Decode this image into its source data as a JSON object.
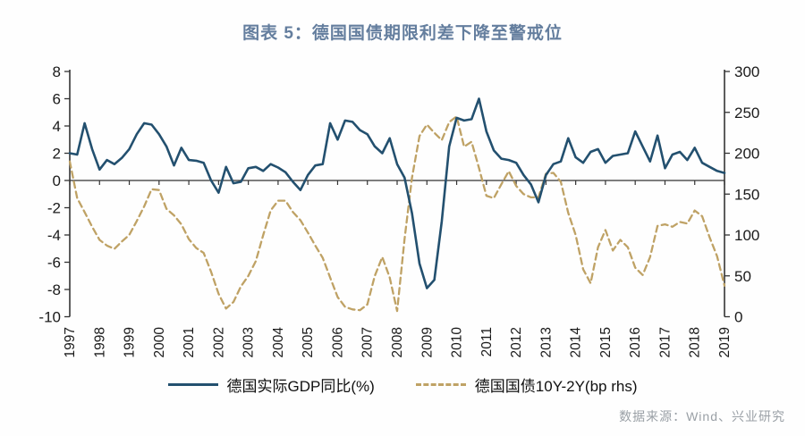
{
  "title": "图表 5：德国国债期限利差下降至警戒位",
  "source": "数据来源：Wind、兴业研究",
  "legend": [
    {
      "label": "德国实际GDP同比(%)",
      "line_style": "solid",
      "color": "#23506f"
    },
    {
      "label": "德国国债10Y-2Y(bp rhs)",
      "line_style": "dashed",
      "color": "#bfa265"
    }
  ],
  "colors": {
    "gdp_line": "#23506f",
    "spread_line": "#bfa265",
    "axis": "#333333",
    "zero_line": "#333333",
    "title_text": "#647e9e",
    "source_text": "#9aa0a6",
    "tick_text": "#1a1a1a"
  },
  "chart_data": {
    "type": "line",
    "frequency": "quarterly",
    "x_years": [
      1997,
      1998,
      1999,
      2000,
      2001,
      2002,
      2003,
      2004,
      2005,
      2006,
      2007,
      2008,
      2009,
      2010,
      2011,
      2012,
      2013,
      2014,
      2015,
      2016,
      2017,
      2018,
      2019
    ],
    "left_axis": {
      "range": [
        -10,
        8
      ],
      "tick_labels": [
        "8",
        "6",
        "4",
        "2",
        "0",
        "-2",
        "-4",
        "-6",
        "-8",
        "-10"
      ],
      "tick_values": [
        8,
        6,
        4,
        2,
        0,
        -2,
        -4,
        -6,
        -8,
        -10
      ]
    },
    "right_axis": {
      "range": [
        0,
        300
      ],
      "tick_labels": [
        "300",
        "250",
        "200",
        "150",
        "100",
        "50",
        "0"
      ],
      "tick_values": [
        300,
        250,
        200,
        150,
        100,
        50,
        0
      ]
    },
    "grid": false,
    "legend_position": "bottom",
    "series": [
      {
        "name": "德国实际GDP同比(%)",
        "axis": "left",
        "color": "#23506f",
        "dash": false,
        "values": [
          2.0,
          1.9,
          4.2,
          2.3,
          0.8,
          1.5,
          1.2,
          1.65,
          2.3,
          3.4,
          4.2,
          4.1,
          3.4,
          2.5,
          1.1,
          2.4,
          1.5,
          1.45,
          1.3,
          0.0,
          -0.9,
          1.0,
          -0.2,
          -0.1,
          0.9,
          1.0,
          0.7,
          1.2,
          0.95,
          0.6,
          -0.1,
          -0.7,
          0.4,
          1.1,
          1.2,
          4.2,
          3.0,
          4.4,
          4.3,
          3.7,
          3.4,
          2.5,
          2.0,
          3.1,
          1.2,
          0.2,
          -2.4,
          -6.1,
          -7.9,
          -7.3,
          -3.0,
          2.5,
          4.6,
          4.4,
          4.5,
          6.0,
          3.6,
          2.2,
          1.6,
          1.5,
          1.3,
          0.4,
          -0.3,
          -1.6,
          0.4,
          1.2,
          1.4,
          3.1,
          1.7,
          1.3,
          2.1,
          2.3,
          1.3,
          1.8,
          1.9,
          2.0,
          3.6,
          2.5,
          1.4,
          3.3,
          0.9,
          1.9,
          2.1,
          1.5,
          2.4,
          1.3,
          1.0,
          0.7,
          0.55
        ]
      },
      {
        "name": "德国国债10Y-2Y(bp rhs)",
        "axis": "right",
        "color": "#bfa265",
        "dash": true,
        "values": [
          190,
          145,
          128,
          110,
          94,
          87,
          83,
          92,
          100,
          117,
          135,
          156,
          155,
          132,
          124,
          113,
          95,
          84,
          78,
          55,
          28,
          10,
          18,
          37,
          50,
          68,
          100,
          130,
          142,
          142,
          128,
          118,
          103,
          87,
          72,
          48,
          24,
          12,
          9,
          8,
          15,
          50,
          73,
          48,
          7,
          95,
          170,
          221,
          235,
          225,
          216,
          238,
          245,
          208,
          214,
          182,
          148,
          145,
          162,
          178,
          160,
          150,
          146,
          146,
          175,
          176,
          165,
          127,
          100,
          58,
          41,
          85,
          106,
          81,
          94,
          85,
          60,
          51,
          73,
          111,
          113,
          110,
          116,
          114,
          130,
          123,
          97,
          74,
          38
        ]
      }
    ]
  }
}
